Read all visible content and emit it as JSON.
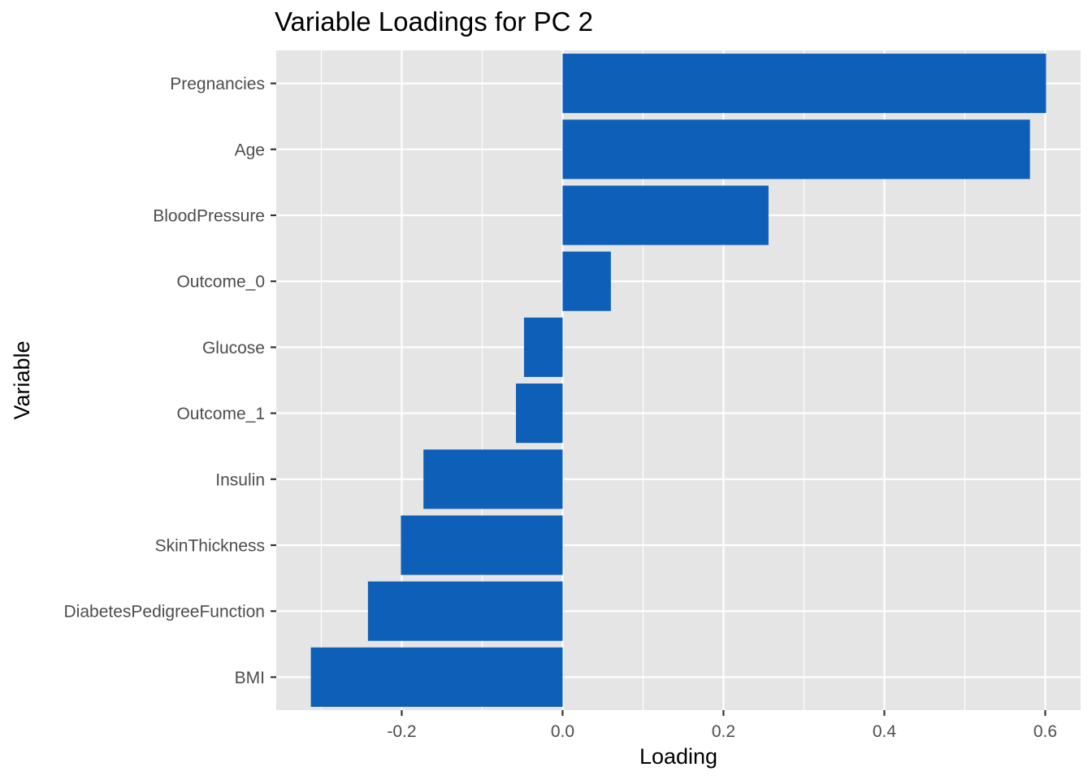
{
  "chart_data": {
    "type": "bar",
    "orientation": "horizontal",
    "title": "Variable Loadings for PC 2",
    "xlabel": "Loading",
    "ylabel": "Variable",
    "categories": [
      "Pregnancies",
      "Age",
      "BloodPressure",
      "Outcome_0",
      "Glucose",
      "Outcome_1",
      "Insulin",
      "SkinThickness",
      "DiabetesPedigreeFunction",
      "BMI"
    ],
    "values": [
      0.601,
      0.581,
      0.256,
      0.06,
      -0.048,
      -0.058,
      -0.173,
      -0.201,
      -0.242,
      -0.313
    ],
    "xlim": [
      -0.356,
      0.644
    ],
    "xticks": [
      -0.2,
      0.0,
      0.2,
      0.4,
      0.6
    ],
    "xtick_labels": [
      "-0.2",
      "0.0",
      "0.2",
      "0.4",
      "0.6"
    ],
    "grid": true,
    "legend": "none",
    "colors": {
      "bar": "#0e5fb8",
      "panel_background": "#e5e5e5",
      "gridline": "#ffffff"
    }
  }
}
